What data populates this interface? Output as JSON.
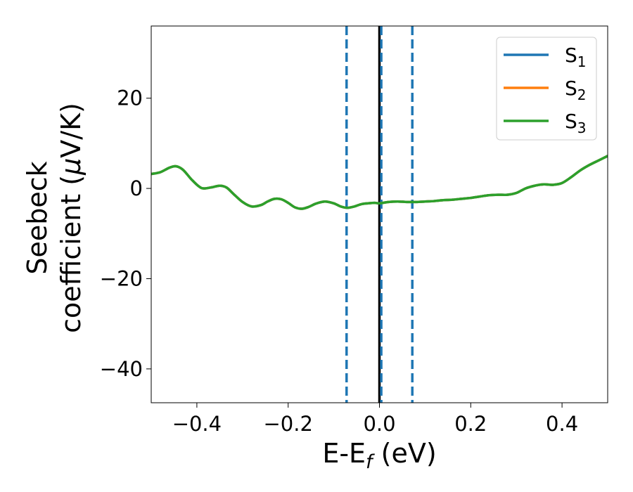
{
  "chart_data": {
    "type": "line",
    "xlabel": {
      "base": "E-E",
      "sub": "f",
      "rest": " (eV)"
    },
    "ylabel": {
      "line1": "Seebeck",
      "line2_prefix": "coefficient  (",
      "mu": "μ",
      "line2_suffix": "V/K)"
    },
    "xlim": [
      -0.5,
      0.5
    ],
    "ylim": [
      -47.5,
      36
    ],
    "xticks": [
      {
        "value": -0.4,
        "label": "−0.4"
      },
      {
        "value": -0.2,
        "label": "−0.2"
      },
      {
        "value": 0.0,
        "label": "0.0"
      },
      {
        "value": 0.2,
        "label": "0.2"
      },
      {
        "value": 0.4,
        "label": "0.4"
      }
    ],
    "yticks": [
      {
        "value": 20,
        "label": "20"
      },
      {
        "value": 0,
        "label": "0"
      },
      {
        "value": -20,
        "label": "−20"
      },
      {
        "value": -40,
        "label": "−40"
      }
    ],
    "grid": false,
    "legend_position": "top-right",
    "x": [
      -0.5,
      -0.48,
      -0.46,
      -0.445,
      -0.43,
      -0.41,
      -0.39,
      -0.37,
      -0.35,
      -0.335,
      -0.32,
      -0.3,
      -0.28,
      -0.26,
      -0.245,
      -0.23,
      -0.215,
      -0.2,
      -0.185,
      -0.17,
      -0.155,
      -0.14,
      -0.12,
      -0.1,
      -0.085,
      -0.07,
      -0.055,
      -0.04,
      -0.025,
      -0.01,
      0.0,
      0.02,
      0.04,
      0.06,
      0.08,
      0.1,
      0.12,
      0.14,
      0.16,
      0.18,
      0.2,
      0.22,
      0.24,
      0.26,
      0.28,
      0.3,
      0.32,
      0.34,
      0.36,
      0.38,
      0.4,
      0.42,
      0.44,
      0.46,
      0.48,
      0.5
    ],
    "series": [
      {
        "name_base": "S",
        "name_sub": "1",
        "color": "#1f77b4",
        "values": [
          3.2,
          3.6,
          4.6,
          4.9,
          4.1,
          1.8,
          0.1,
          0.2,
          0.6,
          0.2,
          -1.2,
          -3.0,
          -4.0,
          -3.7,
          -2.9,
          -2.3,
          -2.4,
          -3.2,
          -4.2,
          -4.5,
          -4.1,
          -3.4,
          -2.9,
          -3.3,
          -4.0,
          -4.3,
          -4.0,
          -3.5,
          -3.3,
          -3.2,
          -3.3,
          -3.0,
          -2.9,
          -3.0,
          -3.0,
          -2.9,
          -2.8,
          -2.6,
          -2.5,
          -2.3,
          -2.1,
          -1.8,
          -1.5,
          -1.4,
          -1.4,
          -1.0,
          0.0,
          0.6,
          0.9,
          0.8,
          1.2,
          2.5,
          4.0,
          5.2,
          6.2,
          7.2
        ]
      },
      {
        "name_base": "S",
        "name_sub": "2",
        "color": "#ff7f0e",
        "values": [
          3.2,
          3.6,
          4.6,
          4.9,
          4.1,
          1.8,
          0.1,
          0.2,
          0.6,
          0.2,
          -1.2,
          -3.0,
          -4.0,
          -3.7,
          -2.9,
          -2.3,
          -2.4,
          -3.2,
          -4.2,
          -4.5,
          -4.1,
          -3.4,
          -2.9,
          -3.3,
          -4.0,
          -4.3,
          -4.0,
          -3.5,
          -3.3,
          -3.2,
          -3.3,
          -3.0,
          -2.9,
          -3.0,
          -3.0,
          -2.9,
          -2.8,
          -2.6,
          -2.5,
          -2.3,
          -2.1,
          -1.8,
          -1.5,
          -1.4,
          -1.4,
          -1.0,
          0.0,
          0.6,
          0.9,
          0.8,
          1.2,
          2.5,
          4.0,
          5.2,
          6.2,
          7.2
        ]
      },
      {
        "name_base": "S",
        "name_sub": "3",
        "color": "#2ca02c",
        "values": [
          3.2,
          3.6,
          4.6,
          4.9,
          4.1,
          1.8,
          0.1,
          0.2,
          0.6,
          0.2,
          -1.2,
          -3.0,
          -4.0,
          -3.7,
          -2.9,
          -2.3,
          -2.4,
          -3.2,
          -4.2,
          -4.5,
          -4.1,
          -3.4,
          -2.9,
          -3.3,
          -4.0,
          -4.3,
          -4.0,
          -3.5,
          -3.3,
          -3.2,
          -3.3,
          -3.0,
          -2.9,
          -3.0,
          -3.0,
          -2.9,
          -2.8,
          -2.6,
          -2.5,
          -2.3,
          -2.1,
          -1.8,
          -1.5,
          -1.4,
          -1.4,
          -1.0,
          0.0,
          0.6,
          0.9,
          0.8,
          1.2,
          2.5,
          4.0,
          5.2,
          6.2,
          7.2
        ]
      }
    ],
    "vlines": [
      {
        "x": 0.0,
        "style": "solid",
        "color": "#000000"
      },
      {
        "x": 0.004,
        "style": "dashed",
        "color": "#1f77b4"
      },
      {
        "x": -0.072,
        "style": "dashed",
        "color": "#1f77b4"
      },
      {
        "x": 0.072,
        "style": "dashed",
        "color": "#1f77b4"
      }
    ]
  }
}
